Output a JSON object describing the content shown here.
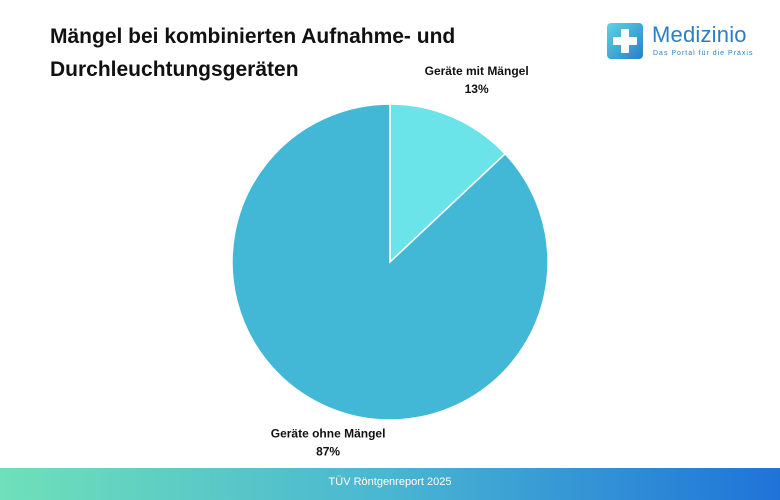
{
  "header": {
    "title_line1": "Mängel bei kombinierten Aufnahme- und",
    "title_line2": "Durchleuchtungsgeräten"
  },
  "logo": {
    "name": "Medizinio",
    "tagline": "Das Portal für die Praxis",
    "icon": "medical-cross-icon"
  },
  "chart_data": {
    "type": "pie",
    "title": "Mängel bei kombinierten Aufnahme- und Durchleuchtungsgeräten",
    "start_angle_deg": 0,
    "direction": "clockwise",
    "slices": [
      {
        "label": "Geräte mit Mängel",
        "value": 13,
        "value_label": "13%",
        "color": "#6ae4e9"
      },
      {
        "label": "Geräte ohne Mängel",
        "value": 87,
        "value_label": "87%",
        "color": "#42b8d6"
      }
    ]
  },
  "footer": {
    "source": "TÜV Röntgenreport 2025"
  },
  "colors": {
    "brand": "#2a7fc4",
    "footer_start": "#6fe0b9",
    "footer_end": "#1f73d8"
  }
}
